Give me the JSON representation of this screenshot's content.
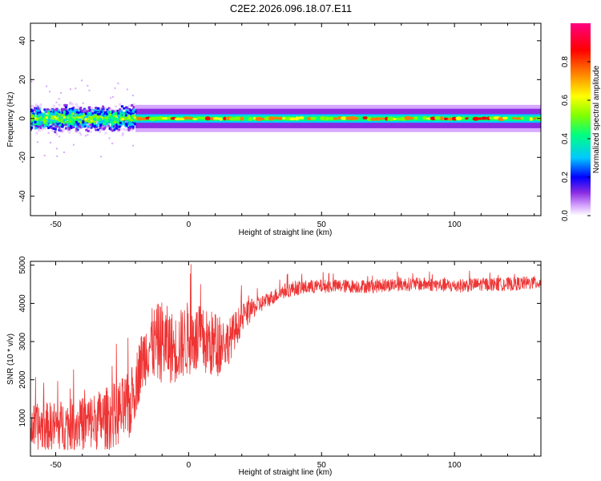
{
  "title": "C2E2.2026.096.18.07.E11",
  "chart_data": [
    {
      "type": "heatmap",
      "title": "C2E2.2026.096.18.07.E11",
      "xlabel": "Height of straight line (km)",
      "ylabel": "Frequency (Hz)",
      "xlim": [
        -59.5,
        132.5
      ],
      "ylim": [
        -50,
        49
      ],
      "xticks": [
        -50,
        0,
        50,
        100
      ],
      "yticks": [
        -40,
        -20,
        0,
        20,
        40
      ],
      "xtick_labels": [
        "-50",
        "0",
        "50",
        "100"
      ],
      "ytick_labels": [
        "-40",
        "-20",
        "0",
        "20",
        "40"
      ],
      "colorbar": {
        "label": "Normalized spectral amplitude",
        "range": [
          0,
          1
        ],
        "ticks": [
          0.0,
          0.2,
          0.4,
          0.6,
          0.8
        ],
        "tick_labels": [
          "0.0",
          "0.2",
          "0.4",
          "0.6",
          "0.8"
        ],
        "colormap": [
          "#ffffff",
          "#d7a8ff",
          "#8a2be2",
          "#0000ff",
          "#00c8ff",
          "#00ff7f",
          "#7fff00",
          "#ffff00",
          "#ff8000",
          "#ff0000",
          "#ff0080"
        ]
      },
      "band": {
        "center_hz": 0,
        "noisy_region_km": [
          -59.5,
          -20
        ],
        "noisy_halfwidth_hz": 8,
        "stable_halfwidth_hz": 3
      }
    },
    {
      "type": "line",
      "title": "",
      "xlabel": "Height of straight line (km)",
      "ylabel": "SNR (10 * v/v)",
      "xlim": [
        -59.5,
        132.5
      ],
      "ylim": [
        0,
        5100
      ],
      "xticks": [
        -50,
        0,
        50,
        100
      ],
      "yticks": [
        1000,
        2000,
        3000,
        4000,
        5000
      ],
      "xtick_labels": [
        "-50",
        "0",
        "50",
        "100"
      ],
      "ytick_labels": [
        "1000",
        "2000",
        "3000",
        "4000",
        "5000"
      ],
      "color": "#ee3333",
      "series": [
        {
          "name": "SNR",
          "x": [
            -59.5,
            -50,
            -40,
            -30,
            -22,
            -18,
            -15,
            -10,
            -5,
            0,
            5,
            10,
            15,
            20,
            25,
            30,
            35,
            40,
            50,
            60,
            70,
            80,
            90,
            100,
            110,
            120,
            132.5
          ],
          "y": [
            750,
            800,
            850,
            1000,
            1300,
            2400,
            2900,
            3000,
            2800,
            3100,
            3000,
            2900,
            3000,
            3600,
            3900,
            4100,
            4300,
            4400,
            4450,
            4450,
            4450,
            4500,
            4500,
            4450,
            4500,
            4500,
            4550
          ],
          "noise_amplitude": [
            600,
            650,
            700,
            850,
            900,
            800,
            900,
            1100,
            900,
            1000,
            900,
            900,
            600,
            400,
            250,
            200,
            200,
            200,
            180,
            180,
            180,
            180,
            180,
            180,
            180,
            180,
            180
          ]
        }
      ]
    }
  ]
}
